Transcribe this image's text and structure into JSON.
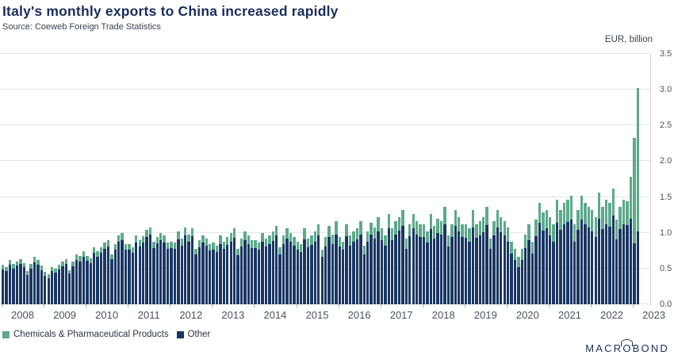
{
  "header": {
    "title": "Italy's monthly exports to China increased rapidly",
    "source": "Source: Coeweb Foreign Trade Statistics"
  },
  "chart_data": {
    "type": "bar",
    "stacked": true,
    "title": "Italy's monthly exports to China increased rapidly",
    "unit_label": "EUR, billion",
    "frequency": "monthly",
    "x_start": "2008-01",
    "x_end": "2023-02",
    "ylim": [
      0,
      3.5
    ],
    "ytick_step": 0.5,
    "ytick_labels": [
      "0.0",
      "0.5",
      "1.0",
      "1.5",
      "2.0",
      "2.5",
      "3.0",
      "3.5"
    ],
    "year_labels": [
      "2008",
      "2009",
      "2010",
      "2011",
      "2012",
      "2013",
      "2014",
      "2015",
      "2016",
      "2017",
      "2018",
      "2019",
      "2020",
      "2021",
      "2022",
      "2023"
    ],
    "grid": true,
    "legend_position": "bottom-left",
    "series": [
      {
        "name": "Chemicals & Pharmaceutical Products",
        "color": "#5ea98c",
        "stack_position": "top",
        "values": [
          0.06,
          0.05,
          0.07,
          0.06,
          0.06,
          0.07,
          0.06,
          0.05,
          0.06,
          0.07,
          0.07,
          0.06,
          0.05,
          0.05,
          0.06,
          0.06,
          0.06,
          0.07,
          0.07,
          0.05,
          0.07,
          0.08,
          0.08,
          0.08,
          0.07,
          0.06,
          0.08,
          0.07,
          0.08,
          0.08,
          0.09,
          0.07,
          0.08,
          0.09,
          0.1,
          0.08,
          0.08,
          0.08,
          0.1,
          0.09,
          0.09,
          0.1,
          0.11,
          0.09,
          0.09,
          0.1,
          0.1,
          0.09,
          0.09,
          0.09,
          0.11,
          0.1,
          0.12,
          0.1,
          0.11,
          0.08,
          0.1,
          0.1,
          0.1,
          0.09,
          0.1,
          0.09,
          0.12,
          0.1,
          0.11,
          0.12,
          0.13,
          0.09,
          0.11,
          0.12,
          0.12,
          0.11,
          0.11,
          0.1,
          0.13,
          0.11,
          0.12,
          0.13,
          0.14,
          0.1,
          0.12,
          0.14,
          0.13,
          0.12,
          0.12,
          0.11,
          0.15,
          0.12,
          0.13,
          0.14,
          0.16,
          0.1,
          0.13,
          0.16,
          0.14,
          0.18,
          0.13,
          0.12,
          0.17,
          0.14,
          0.15,
          0.15,
          0.18,
          0.12,
          0.15,
          0.17,
          0.16,
          0.2,
          0.16,
          0.14,
          0.2,
          0.16,
          0.18,
          0.19,
          0.22,
          0.14,
          0.17,
          0.2,
          0.18,
          0.18,
          0.18,
          0.16,
          0.21,
          0.18,
          0.2,
          0.19,
          0.24,
          0.15,
          0.18,
          0.22,
          0.2,
          0.18,
          0.19,
          0.18,
          0.24,
          0.19,
          0.2,
          0.21,
          0.25,
          0.15,
          0.2,
          0.24,
          0.21,
          0.2,
          0.2,
          0.17,
          0.16,
          0.14,
          0.16,
          0.19,
          0.22,
          0.17,
          0.23,
          0.28,
          0.25,
          0.26,
          0.26,
          0.24,
          0.32,
          0.28,
          0.3,
          0.31,
          0.33,
          0.24,
          0.28,
          0.33,
          0.3,
          0.29,
          0.3,
          0.28,
          0.36,
          0.31,
          0.34,
          0.33,
          0.38,
          0.27,
          0.31,
          0.34,
          0.33,
          0.58,
          1.48,
          2.0
        ]
      },
      {
        "name": "Other",
        "color": "#1a3763",
        "stack_position": "bottom",
        "values": [
          0.49,
          0.47,
          0.55,
          0.5,
          0.54,
          0.56,
          0.52,
          0.41,
          0.5,
          0.59,
          0.55,
          0.48,
          0.4,
          0.37,
          0.46,
          0.44,
          0.49,
          0.53,
          0.56,
          0.43,
          0.53,
          0.62,
          0.6,
          0.66,
          0.61,
          0.58,
          0.72,
          0.67,
          0.72,
          0.78,
          0.81,
          0.63,
          0.76,
          0.87,
          0.9,
          0.76,
          0.76,
          0.72,
          0.86,
          0.81,
          0.86,
          0.94,
          0.97,
          0.79,
          0.85,
          0.9,
          0.86,
          0.77,
          0.79,
          0.77,
          0.91,
          0.82,
          0.96,
          0.88,
          0.95,
          0.7,
          0.8,
          0.86,
          0.82,
          0.75,
          0.76,
          0.73,
          0.84,
          0.78,
          0.83,
          0.88,
          0.93,
          0.69,
          0.81,
          0.9,
          0.84,
          0.79,
          0.79,
          0.76,
          0.87,
          0.81,
          0.84,
          0.89,
          0.96,
          0.7,
          0.84,
          0.92,
          0.87,
          0.82,
          0.76,
          0.73,
          0.91,
          0.8,
          0.83,
          0.88,
          0.96,
          0.66,
          0.81,
          0.94,
          0.84,
          0.98,
          0.81,
          0.76,
          0.95,
          0.82,
          0.87,
          0.91,
          0.98,
          0.7,
          0.87,
          0.97,
          0.92,
          1.02,
          0.9,
          0.82,
          1.06,
          0.9,
          0.98,
          1.03,
          1.1,
          0.78,
          0.95,
          1.06,
          0.98,
          0.94,
          0.94,
          0.86,
          1.05,
          0.92,
          1.0,
          0.97,
          1.12,
          0.81,
          0.94,
          1.1,
          1.02,
          0.94,
          0.93,
          0.88,
          1.08,
          0.93,
          0.96,
          1.01,
          1.11,
          0.77,
          0.96,
          1.08,
          1.01,
          0.96,
          0.88,
          0.71,
          0.62,
          0.52,
          0.62,
          0.79,
          0.9,
          0.71,
          0.95,
          1.14,
          1.03,
          1.06,
          0.96,
          0.88,
          1.14,
          1.04,
          1.12,
          1.15,
          1.19,
          0.88,
          1.04,
          1.19,
          1.12,
          1.07,
          1.02,
          0.94,
          1.2,
          1.05,
          1.12,
          1.09,
          1.24,
          0.91,
          1.05,
          1.12,
          1.11,
          1.2,
          0.85,
          1.02
        ]
      }
    ]
  },
  "legend": {
    "items": [
      {
        "label": "Chemicals & Pharmaceutical Products",
        "color": "#5ea98c"
      },
      {
        "label": "Other",
        "color": "#1a3763"
      }
    ]
  },
  "footer": {
    "brand": "MACROBOND",
    "brand_parts": {
      "left": "MACR",
      "o": "O",
      "right": "BOND"
    }
  }
}
